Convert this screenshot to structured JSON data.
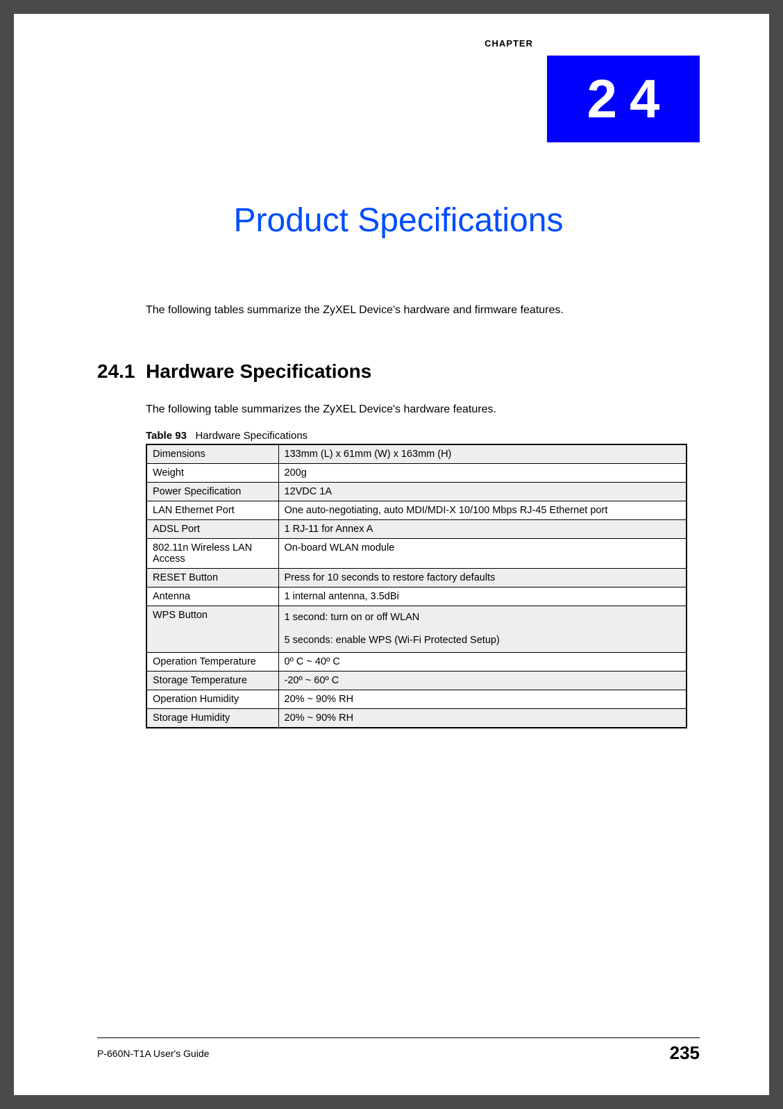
{
  "chapter": {
    "label": "CHAPTER",
    "number": "24",
    "box_bg": "#0000ff",
    "num_color": "#ffffff"
  },
  "title": {
    "text": "Product Specifications",
    "color": "#004cff"
  },
  "intro": "The following tables summarize the ZyXEL Device's hardware and firmware features.",
  "section": {
    "number": "24.1",
    "heading": "Hardware Specifications",
    "text": "The following table summarizes the ZyXEL Device's hardware features."
  },
  "table": {
    "caption_label": "Table 93",
    "caption_text": "Hardware Specifications",
    "rows": [
      {
        "k": "Dimensions",
        "v": "133mm (L) x 61mm (W) x 163mm (H)"
      },
      {
        "k": "Weight",
        "v": "200g"
      },
      {
        "k": "Power Specification",
        "v": "12VDC 1A"
      },
      {
        "k": "LAN Ethernet Port",
        "v": "One auto-negotiating, auto MDI/MDI-X 10/100 Mbps RJ-45 Ethernet port"
      },
      {
        "k": "ADSL Port",
        "v": "1 RJ-11 for Annex A"
      },
      {
        "k": "802.11n Wireless LAN Access",
        "v": "On-board WLAN module"
      },
      {
        "k": "RESET Button",
        "v": "Press for 10 seconds to restore factory defaults"
      },
      {
        "k": "Antenna",
        "v": "1 internal antenna, 3.5dBi"
      },
      {
        "k": "WPS Button",
        "v": "1 second: turn on or off WLAN\n5 seconds: enable WPS (Wi-Fi Protected Setup)"
      },
      {
        "k": "Operation Temperature",
        "v": "0º C ~ 40º C"
      },
      {
        "k": "Storage Temperature",
        "v": "-20º ~ 60º C"
      },
      {
        "k": "Operation Humidity",
        "v": "20% ~ 90% RH"
      },
      {
        "k": "Storage Humidity",
        "v": "20% ~ 90% RH"
      }
    ],
    "odd_row_bg": "#eeeeee",
    "even_row_bg": "#ffffff",
    "border_color": "#000000"
  },
  "footer": {
    "guide": "P-660N-T1A User's Guide",
    "page": "235"
  }
}
